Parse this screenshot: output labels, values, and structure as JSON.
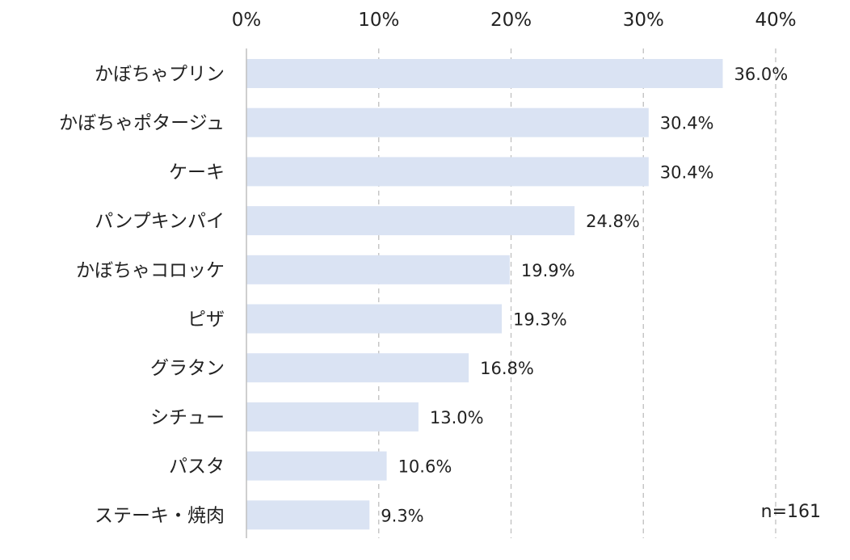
{
  "chart_data": {
    "type": "bar",
    "orientation": "horizontal",
    "categories": [
      "かぼちゃプリン",
      "かぼちゃポタージュ",
      "ケーキ",
      "パンプキンパイ",
      "かぼちゃコロッケ",
      "ピザ",
      "グラタン",
      "シチュー",
      "パスタ",
      "ステーキ・焼肉"
    ],
    "values": [
      36.0,
      30.4,
      30.4,
      24.8,
      19.9,
      19.3,
      16.8,
      13.0,
      10.6,
      9.3
    ],
    "value_labels": [
      "36.0%",
      "30.4%",
      "30.4%",
      "24.8%",
      "19.9%",
      "19.3%",
      "16.8%",
      "13.0%",
      "10.6%",
      "9.3%"
    ],
    "x_ticks": [
      0,
      10,
      20,
      30,
      40
    ],
    "x_tick_labels": [
      "0%",
      "10%",
      "20%",
      "30%",
      "40%"
    ],
    "xlim": [
      0,
      40
    ],
    "axis_position": "top",
    "grid": "vertical dashed",
    "bar_color": "#dae3f3",
    "gridline_color": "#bfbfbf",
    "text_color": "#222222",
    "note": "n=161"
  }
}
